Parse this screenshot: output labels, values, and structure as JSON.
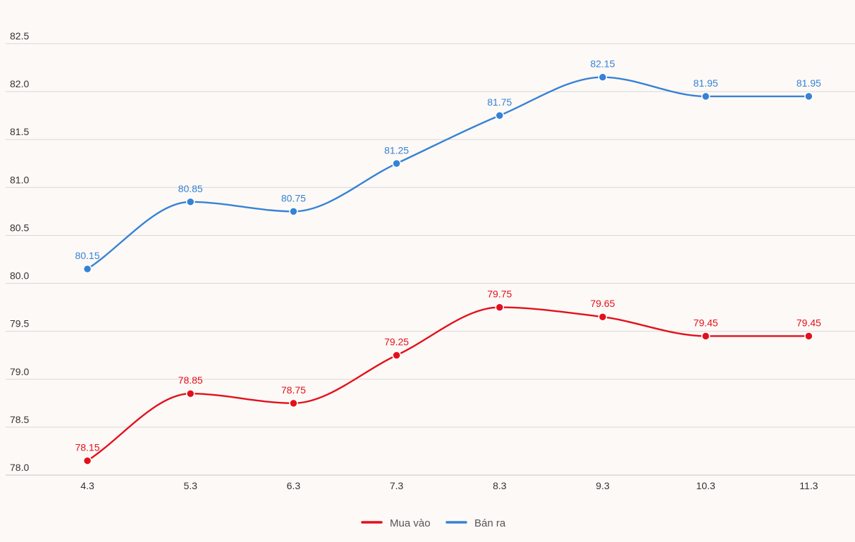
{
  "chart_data": {
    "type": "line",
    "title": "",
    "xlabel": "",
    "ylabel": "",
    "categories": [
      "4.3",
      "5.3",
      "6.3",
      "7.3",
      "8.3",
      "9.3",
      "10.3",
      "11.3"
    ],
    "ylim": [
      78.0,
      82.5
    ],
    "yticks": [
      "78.0",
      "78.5",
      "79.0",
      "79.5",
      "80.0",
      "80.5",
      "81.0",
      "81.5",
      "82.0",
      "82.5"
    ],
    "grid": true,
    "legend_position": "bottom-center",
    "series": [
      {
        "name": "Mua vào",
        "color": "#e3101c",
        "values": [
          78.15,
          78.85,
          78.75,
          79.25,
          79.75,
          79.65,
          79.45,
          79.45
        ],
        "labels": [
          "78.15",
          "78.85",
          "78.75",
          "79.25",
          "79.75",
          "79.65",
          "79.45",
          "79.45"
        ]
      },
      {
        "name": "Bán ra",
        "color": "#3682d6",
        "values": [
          80.15,
          80.85,
          80.75,
          81.25,
          81.75,
          82.15,
          81.95,
          81.95
        ],
        "labels": [
          "80.15",
          "80.85",
          "80.75",
          "81.25",
          "81.75",
          "82.15",
          "81.95",
          "81.95"
        ]
      }
    ]
  }
}
